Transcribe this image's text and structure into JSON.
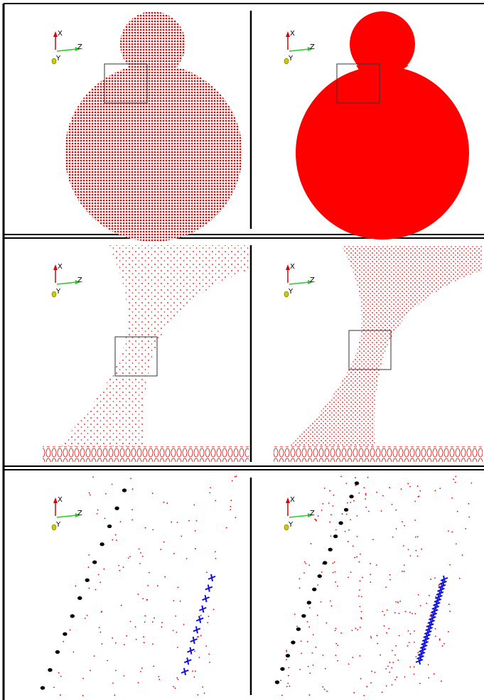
{
  "panels": [
    {
      "axes": {
        "x": "X",
        "z": "Z",
        "y": "Y"
      }
    },
    {
      "axes": {
        "x": "X",
        "z": "Z",
        "y": "Y"
      }
    },
    {
      "axes": {
        "x": "X",
        "z": "Z",
        "y": "Y"
      }
    },
    {
      "axes": {
        "x": "X",
        "z": "Z",
        "y": "Y"
      }
    },
    {
      "axes": {
        "x": "X",
        "z": "Z",
        "y": "Y"
      }
    },
    {
      "axes": {
        "x": "X",
        "z": "Z",
        "y": "Y"
      }
    }
  ]
}
